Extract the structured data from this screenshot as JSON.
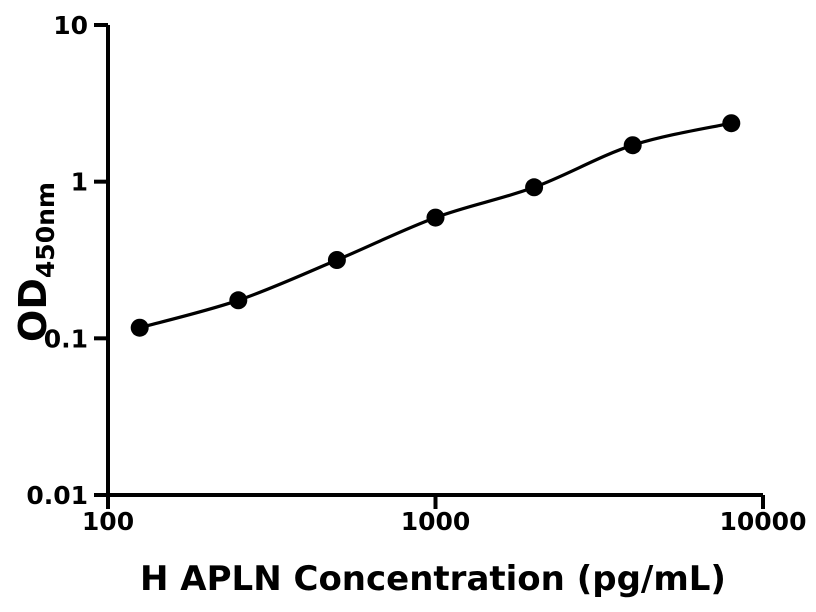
{
  "chart_data": {
    "type": "scatter",
    "title": "",
    "xlabel": "H APLN Concentration (pg/mL)",
    "ylabel_base": "OD",
    "ylabel_subscript": "450nm",
    "x_scale": "log10",
    "y_scale": "log10",
    "xlim": [
      100,
      10000
    ],
    "ylim": [
      0.01,
      10
    ],
    "x_ticks": [
      100,
      1000,
      10000
    ],
    "x_tick_labels": [
      "100",
      "1000",
      "10000"
    ],
    "y_ticks": [
      0.01,
      0.1,
      1,
      10
    ],
    "y_tick_labels": [
      "0.01",
      "0.1",
      "1",
      "10"
    ],
    "grid": false,
    "legend": null,
    "series": [
      {
        "marker": "filled-circle",
        "x": [
          125,
          250,
          500,
          1000,
          2000,
          4000,
          8000
        ],
        "y": [
          0.117,
          0.175,
          0.316,
          0.59,
          0.92,
          1.71,
          2.36
        ]
      }
    ],
    "colors": {
      "marker": "#000000",
      "line": "#000000",
      "axis": "#000000",
      "text": "#000000",
      "background": "#ffffff"
    }
  }
}
